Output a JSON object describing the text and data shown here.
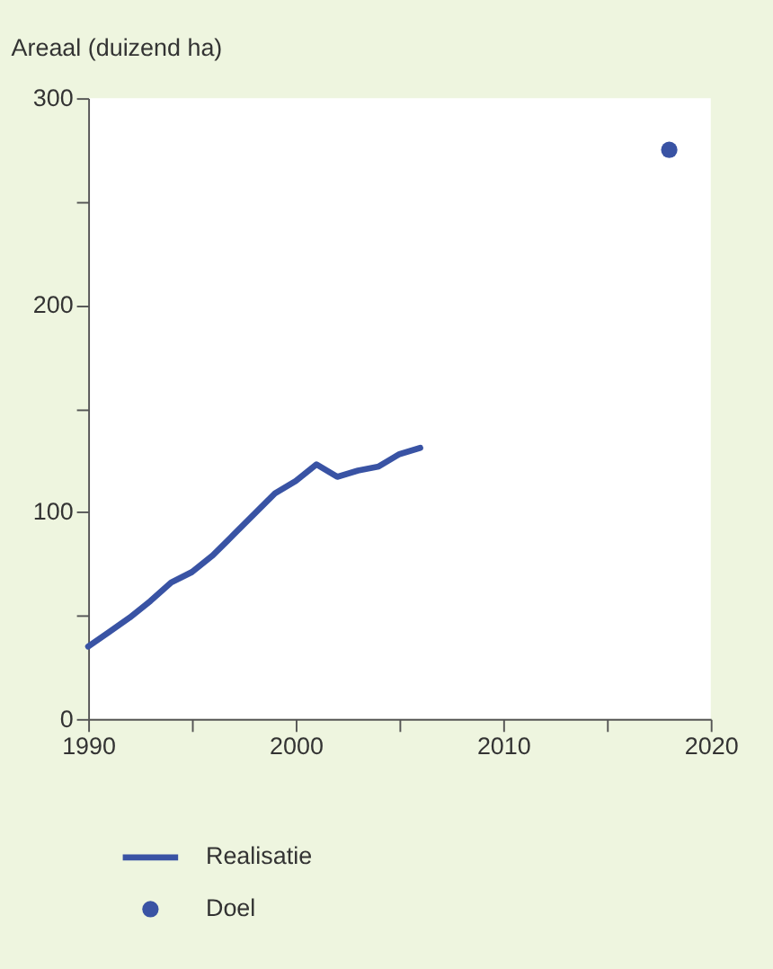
{
  "chart_data": {
    "type": "line",
    "ylabel": "Areaal (duizend ha)",
    "series": [
      {
        "name": "Realisatie",
        "color": "#3953a4",
        "x": [
          1990,
          1991,
          1992,
          1993,
          1994,
          1995,
          1996,
          1997,
          1998,
          1999,
          2000,
          2001,
          2002,
          2003,
          2004,
          2005,
          2006
        ],
        "values": [
          35,
          42,
          49,
          57,
          66,
          71,
          79,
          89,
          99,
          109,
          115,
          123,
          117,
          120,
          122,
          128,
          131
        ]
      },
      {
        "name": "Doel",
        "type": "scatter",
        "color": "#3953a4",
        "x": [
          2018
        ],
        "values": [
          275
        ],
        "marker": "circle"
      }
    ],
    "xlim": [
      1990,
      2020
    ],
    "xticks": [
      1990,
      {
        "value": 1995,
        "label": null
      },
      2000,
      {
        "value": 2005,
        "label": null
      },
      2010,
      {
        "value": 2015,
        "label": null
      },
      2020
    ],
    "ylim": [
      0,
      300
    ],
    "yticks": [
      0,
      {
        "value": 50,
        "label": null
      },
      100,
      {
        "value": 150,
        "label": null
      },
      200,
      {
        "value": 250,
        "label": null
      },
      300
    ],
    "grid": false,
    "legend": "bottom"
  }
}
